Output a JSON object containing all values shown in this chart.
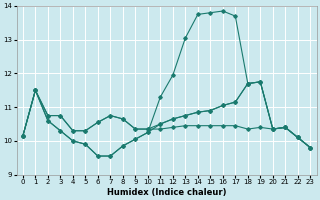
{
  "xlabel": "Humidex (Indice chaleur)",
  "xlim": [
    -0.5,
    23.5
  ],
  "ylim": [
    9,
    14
  ],
  "yticks": [
    9,
    10,
    11,
    12,
    13,
    14
  ],
  "xticks": [
    0,
    1,
    2,
    3,
    4,
    5,
    6,
    7,
    8,
    9,
    10,
    11,
    12,
    13,
    14,
    15,
    16,
    17,
    18,
    19,
    20,
    21,
    22,
    23
  ],
  "bg_color": "#cce9ee",
  "line_color": "#1a7a6e",
  "grid_color": "#ffffff",
  "series": [
    {
      "x": [
        0,
        1,
        2,
        3,
        4,
        5,
        6,
        7,
        8,
        9,
        10,
        11,
        12,
        13,
        14,
        15,
        16,
        17,
        18,
        19,
        20,
        21,
        22,
        23
      ],
      "y": [
        10.15,
        11.5,
        10.6,
        10.3,
        10.0,
        9.9,
        9.55,
        9.55,
        9.85,
        10.05,
        10.25,
        11.3,
        11.95,
        13.05,
        13.75,
        13.8,
        13.85,
        13.7,
        11.7,
        11.75,
        10.35,
        10.4,
        10.1,
        9.8
      ]
    },
    {
      "x": [
        0,
        1,
        2,
        3,
        4,
        5,
        6,
        7,
        8,
        9,
        10,
        11,
        12,
        13,
        14,
        15,
        16,
        17,
        18,
        19,
        20,
        21,
        22,
        23
      ],
      "y": [
        10.15,
        11.5,
        10.75,
        10.75,
        10.3,
        10.3,
        10.55,
        10.75,
        10.65,
        10.35,
        10.35,
        10.5,
        10.65,
        10.75,
        10.85,
        10.9,
        11.05,
        11.15,
        11.7,
        11.75,
        10.35,
        10.4,
        10.1,
        9.8
      ]
    },
    {
      "x": [
        0,
        1,
        2,
        3,
        4,
        5,
        6,
        7,
        8,
        9,
        10,
        11,
        12,
        13,
        14,
        15,
        16,
        17,
        18,
        19,
        20,
        21,
        22,
        23
      ],
      "y": [
        10.15,
        11.5,
        10.6,
        10.3,
        10.0,
        9.9,
        9.55,
        9.55,
        9.85,
        10.05,
        10.25,
        10.5,
        10.65,
        10.75,
        10.85,
        10.9,
        11.05,
        11.15,
        11.7,
        11.75,
        10.35,
        10.4,
        10.1,
        9.8
      ]
    },
    {
      "x": [
        0,
        1,
        2,
        3,
        4,
        5,
        6,
        7,
        8,
        9,
        10,
        11,
        12,
        13,
        14,
        15,
        16,
        17,
        18,
        19,
        20,
        21,
        22,
        23
      ],
      "y": [
        10.15,
        11.5,
        10.75,
        10.75,
        10.3,
        10.3,
        10.55,
        10.75,
        10.65,
        10.35,
        10.35,
        10.35,
        10.4,
        10.45,
        10.45,
        10.45,
        10.45,
        10.45,
        10.35,
        10.4,
        10.35,
        10.4,
        10.1,
        9.8
      ]
    }
  ]
}
